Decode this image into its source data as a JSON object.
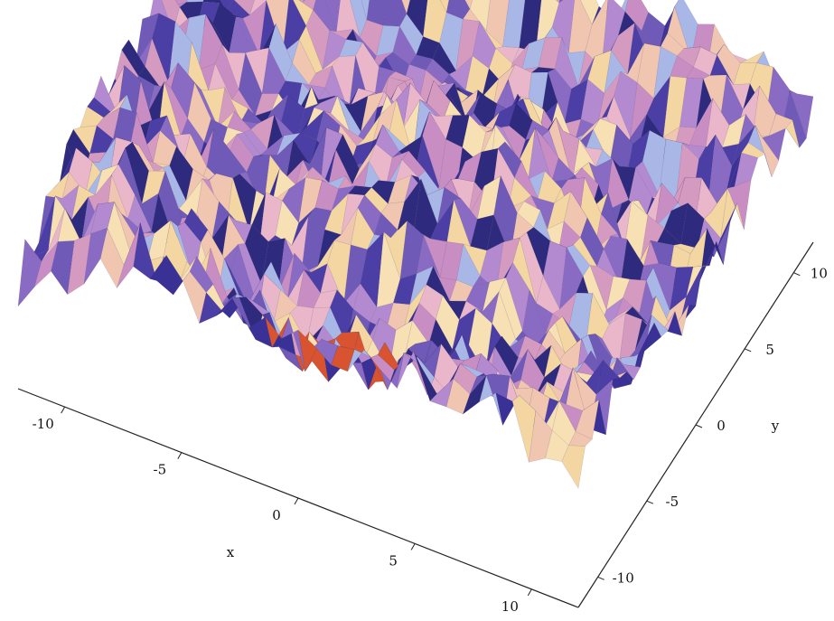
{
  "chart_data": {
    "type": "surface3d",
    "xlabel": "x",
    "ylabel": "y",
    "xlim": [
      -12,
      12
    ],
    "ylim": [
      -12,
      12
    ],
    "xticks": [
      -10,
      -5,
      0,
      5,
      10
    ],
    "yticks": [
      -10,
      -5,
      0,
      5,
      10
    ]
  }
}
